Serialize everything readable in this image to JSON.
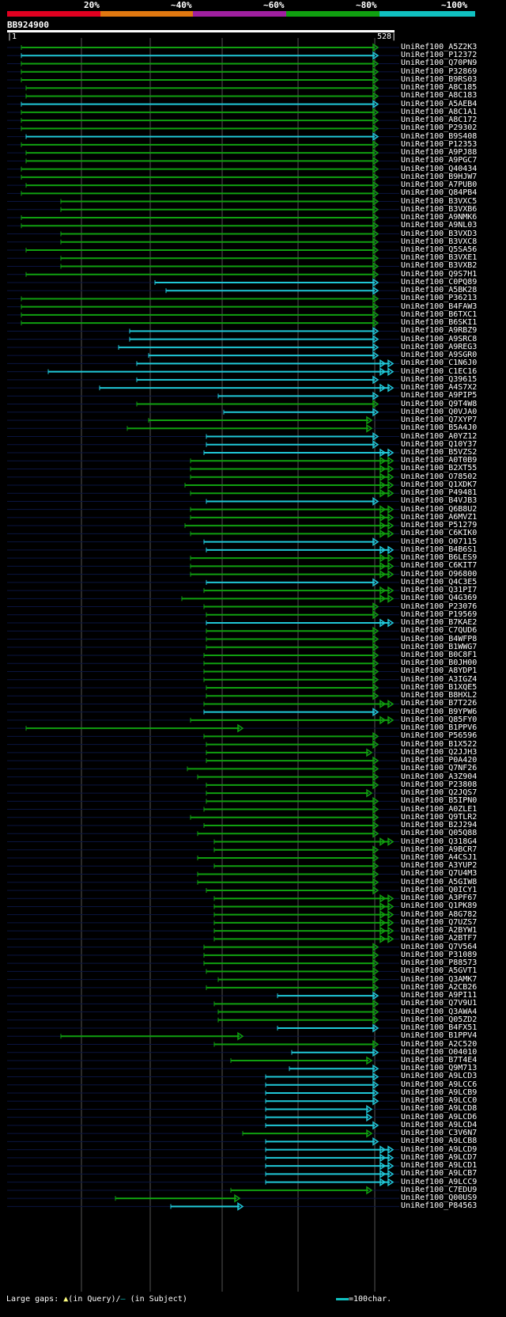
{
  "legend": {
    "percent_labels": [
      "20%",
      "~40%",
      "~60%",
      "~80%",
      "~100%"
    ],
    "colors": [
      "#e00020",
      "#e07810",
      "#a020a0",
      "#10a010",
      "#10c0c0"
    ]
  },
  "query": {
    "id": "BB924900",
    "start": "1",
    "end": "528"
  },
  "footer": {
    "large_gaps_label": "Large gaps:",
    "in_query": "(in Query)/",
    "in_subject": "(in Subject)",
    "scale_label": "=100char."
  },
  "hits": [
    {
      "id": "UniRef100_A5Z2K3",
      "x1": 27,
      "x2": 478,
      "c": "g",
      "e": 1
    },
    {
      "id": "UniRef100_P12372",
      "x1": 27,
      "x2": 478,
      "c": "c",
      "e": 1
    },
    {
      "id": "UniRef100_Q70PN9",
      "x1": 27,
      "x2": 478,
      "c": "g",
      "e": 1
    },
    {
      "id": "UniRef100_P32869",
      "x1": 27,
      "x2": 478,
      "c": "g",
      "e": 1
    },
    {
      "id": "UniRef100_B9RS03",
      "x1": 27,
      "x2": 478,
      "c": "g",
      "e": 1
    },
    {
      "id": "UniRef100_A8C185",
      "x1": 33,
      "x2": 478,
      "c": "g",
      "e": 1
    },
    {
      "id": "UniRef100_A8C183",
      "x1": 33,
      "x2": 478,
      "c": "g",
      "e": 1
    },
    {
      "id": "UniRef100_A5AEB4",
      "x1": 27,
      "x2": 478,
      "c": "c",
      "e": 1
    },
    {
      "id": "UniRef100_A8C1A1",
      "x1": 27,
      "x2": 478,
      "c": "g",
      "e": 1
    },
    {
      "id": "UniRef100_A8C172",
      "x1": 27,
      "x2": 478,
      "c": "g",
      "e": 1
    },
    {
      "id": "UniRef100_P29302",
      "x1": 27,
      "x2": 478,
      "c": "g",
      "e": 1
    },
    {
      "id": "UniRef100_B9S408",
      "x1": 33,
      "x2": 478,
      "c": "c",
      "e": 1
    },
    {
      "id": "UniRef100_P12353",
      "x1": 27,
      "x2": 478,
      "c": "g",
      "e": 1
    },
    {
      "id": "UniRef100_A9PJ88",
      "x1": 33,
      "x2": 478,
      "c": "g",
      "e": 1
    },
    {
      "id": "UniRef100_A9PGC7",
      "x1": 33,
      "x2": 478,
      "c": "g",
      "e": 1
    },
    {
      "id": "UniRef100_Q40434",
      "x1": 27,
      "x2": 478,
      "c": "g",
      "e": 1
    },
    {
      "id": "UniRef100_B9HJW7",
      "x1": 27,
      "x2": 478,
      "c": "g",
      "e": 1
    },
    {
      "id": "UniRef100_A7PUB0",
      "x1": 33,
      "x2": 478,
      "c": "g",
      "e": 1
    },
    {
      "id": "UniRef100_Q84PB4",
      "x1": 27,
      "x2": 478,
      "c": "g",
      "e": 1
    },
    {
      "id": "UniRef100_B3VXC5",
      "x1": 77,
      "x2": 478,
      "c": "g",
      "e": 1
    },
    {
      "id": "UniRef100_B3VXB6",
      "x1": 77,
      "x2": 478,
      "c": "g",
      "e": 1
    },
    {
      "id": "UniRef100_A9NMK6",
      "x1": 27,
      "x2": 478,
      "c": "g",
      "e": 1
    },
    {
      "id": "UniRef100_A9NL03",
      "x1": 27,
      "x2": 478,
      "c": "g",
      "e": 1
    },
    {
      "id": "UniRef100_B3VXD3",
      "x1": 77,
      "x2": 478,
      "c": "g",
      "e": 1
    },
    {
      "id": "UniRef100_B3VXC8",
      "x1": 77,
      "x2": 478,
      "c": "g",
      "e": 1
    },
    {
      "id": "UniRef100_Q5SA56",
      "x1": 33,
      "x2": 478,
      "c": "g",
      "e": 1
    },
    {
      "id": "UniRef100_B3VXE1",
      "x1": 77,
      "x2": 478,
      "c": "g",
      "e": 1
    },
    {
      "id": "UniRef100_B3VXB2",
      "x1": 77,
      "x2": 478,
      "c": "g",
      "e": 1
    },
    {
      "id": "UniRef100_Q9S7H1",
      "x1": 33,
      "x2": 478,
      "c": "g",
      "e": 1
    },
    {
      "id": "UniRef100_C0PQ89",
      "x1": 196,
      "x2": 478,
      "c": "c",
      "e": 1
    },
    {
      "id": "UniRef100_A5BK28",
      "x1": 210,
      "x2": 478,
      "c": "c",
      "e": 1
    },
    {
      "id": "UniRef100_P36213",
      "x1": 27,
      "x2": 478,
      "c": "g",
      "e": 1
    },
    {
      "id": "UniRef100_B4FAW3",
      "x1": 27,
      "x2": 478,
      "c": "g",
      "e": 1
    },
    {
      "id": "UniRef100_B6TXC1",
      "x1": 27,
      "x2": 478,
      "c": "g",
      "e": 1
    },
    {
      "id": "UniRef100_B6SKI1",
      "x1": 27,
      "x2": 478,
      "c": "g",
      "e": 1
    },
    {
      "id": "UniRef100_A9RBZ9",
      "x1": 164,
      "x2": 478,
      "c": "c",
      "e": 1
    },
    {
      "id": "UniRef100_A9SRC8",
      "x1": 164,
      "x2": 478,
      "c": "c",
      "e": 1
    },
    {
      "id": "UniRef100_A9REG3",
      "x1": 150,
      "x2": 478,
      "c": "c",
      "e": 1
    },
    {
      "id": "UniRef100_A9SGR0",
      "x1": 188,
      "x2": 478,
      "c": "c",
      "e": 1
    },
    {
      "id": "UniRef100_C1N6J0",
      "x1": 173,
      "x2": 497,
      "c": "c",
      "e": 2
    },
    {
      "id": "UniRef100_C1EC16",
      "x1": 61,
      "x2": 497,
      "c": "c",
      "e": 2
    },
    {
      "id": "UniRef100_Q39615",
      "x1": 173,
      "x2": 478,
      "c": "c",
      "e": 1
    },
    {
      "id": "UniRef100_A4S7X2",
      "x1": 126,
      "x2": 497,
      "c": "c",
      "e": 2
    },
    {
      "id": "UniRef100_A9PIP5",
      "x1": 276,
      "x2": 478,
      "c": "c",
      "e": 1
    },
    {
      "id": "UniRef100_Q9T4W8",
      "x1": 173,
      "x2": 478,
      "c": "g",
      "e": 1
    },
    {
      "id": "UniRef100_Q0VJA0",
      "x1": 283,
      "x2": 478,
      "c": "c",
      "e": 1
    },
    {
      "id": "UniRef100_Q7XYP7",
      "x1": 188,
      "x2": 470,
      "c": "g",
      "e": 1
    },
    {
      "id": "UniRef100_B5A4J0",
      "x1": 161,
      "x2": 470,
      "c": "g",
      "e": 1
    },
    {
      "id": "UniRef100_A0YZ12",
      "x1": 261,
      "x2": 478,
      "c": "c",
      "e": 1
    },
    {
      "id": "UniRef100_Q10Y37",
      "x1": 261,
      "x2": 478,
      "c": "c",
      "e": 1
    },
    {
      "id": "UniRef100_B5VZS2",
      "x1": 258,
      "x2": 497,
      "c": "c",
      "e": 2
    },
    {
      "id": "UniRef100_A0T0B9",
      "x1": 241,
      "x2": 497,
      "c": "g",
      "e": 2
    },
    {
      "id": "UniRef100_B2XT55",
      "x1": 241,
      "x2": 497,
      "c": "g",
      "e": 2
    },
    {
      "id": "UniRef100_O78502",
      "x1": 241,
      "x2": 497,
      "c": "g",
      "e": 2
    },
    {
      "id": "UniRef100_Q1XDK7",
      "x1": 234,
      "x2": 497,
      "c": "g",
      "e": 2
    },
    {
      "id": "UniRef100_P49481",
      "x1": 241,
      "x2": 497,
      "c": "g",
      "e": 2
    },
    {
      "id": "UniRef100_B4VJB3",
      "x1": 261,
      "x2": 478,
      "c": "c",
      "e": 1
    },
    {
      "id": "UniRef100_Q6B8U2",
      "x1": 241,
      "x2": 497,
      "c": "g",
      "e": 2
    },
    {
      "id": "UniRef100_A6MVZ1",
      "x1": 241,
      "x2": 497,
      "c": "g",
      "e": 2
    },
    {
      "id": "UniRef100_P51279",
      "x1": 234,
      "x2": 497,
      "c": "g",
      "e": 2
    },
    {
      "id": "UniRef100_C6KIK0",
      "x1": 241,
      "x2": 497,
      "c": "g",
      "e": 2
    },
    {
      "id": "UniRef100_O07115",
      "x1": 258,
      "x2": 478,
      "c": "c",
      "e": 1
    },
    {
      "id": "UniRef100_B4B6S1",
      "x1": 261,
      "x2": 497,
      "c": "c",
      "e": 2
    },
    {
      "id": "UniRef100_B6LES9",
      "x1": 241,
      "x2": 497,
      "c": "g",
      "e": 2
    },
    {
      "id": "UniRef100_C6KIT7",
      "x1": 241,
      "x2": 497,
      "c": "g",
      "e": 2
    },
    {
      "id": "UniRef100_O96800",
      "x1": 241,
      "x2": 497,
      "c": "g",
      "e": 2
    },
    {
      "id": "UniRef100_Q4C3E5",
      "x1": 261,
      "x2": 478,
      "c": "c",
      "e": 1
    },
    {
      "id": "UniRef100_Q31PI7",
      "x1": 258,
      "x2": 497,
      "c": "g",
      "e": 2
    },
    {
      "id": "UniRef100_Q4G369",
      "x1": 230,
      "x2": 497,
      "c": "g",
      "e": 2
    },
    {
      "id": "UniRef100_P23076",
      "x1": 258,
      "x2": 478,
      "c": "g",
      "e": 1
    },
    {
      "id": "UniRef100_P19569",
      "x1": 261,
      "x2": 478,
      "c": "g",
      "e": 1
    },
    {
      "id": "UniRef100_B7KAE2",
      "x1": 261,
      "x2": 497,
      "c": "c",
      "e": 2
    },
    {
      "id": "UniRef100_C7QUD6",
      "x1": 261,
      "x2": 478,
      "c": "g",
      "e": 1
    },
    {
      "id": "UniRef100_B4WFP8",
      "x1": 261,
      "x2": 478,
      "c": "g",
      "e": 1
    },
    {
      "id": "UniRef100_B1WWG7",
      "x1": 261,
      "x2": 478,
      "c": "g",
      "e": 1
    },
    {
      "id": "UniRef100_B0C8F1",
      "x1": 258,
      "x2": 478,
      "c": "g",
      "e": 1
    },
    {
      "id": "UniRef100_B0JH00",
      "x1": 258,
      "x2": 478,
      "c": "g",
      "e": 1
    },
    {
      "id": "UniRef100_A8YDP1",
      "x1": 258,
      "x2": 478,
      "c": "g",
      "e": 1
    },
    {
      "id": "UniRef100_A3IGZ4",
      "x1": 258,
      "x2": 478,
      "c": "g",
      "e": 1
    },
    {
      "id": "UniRef100_B1XQE5",
      "x1": 261,
      "x2": 478,
      "c": "g",
      "e": 1
    },
    {
      "id": "UniRef100_B8HXL2",
      "x1": 261,
      "x2": 478,
      "c": "g",
      "e": 1
    },
    {
      "id": "UniRef100_B7T226",
      "x1": 258,
      "x2": 497,
      "c": "g",
      "e": 2
    },
    {
      "id": "UniRef100_B9YPW6",
      "x1": 258,
      "x2": 478,
      "c": "c",
      "e": 1
    },
    {
      "id": "UniRef100_Q85FY0",
      "x1": 241,
      "x2": 497,
      "c": "g",
      "e": 2
    },
    {
      "id": "UniRef100_B1PPV6",
      "x1": 33,
      "x2": 307,
      "c": "g",
      "e": 1
    },
    {
      "id": "UniRef100_P56596",
      "x1": 258,
      "x2": 478,
      "c": "g",
      "e": 1
    },
    {
      "id": "UniRef100_B1X522",
      "x1": 261,
      "x2": 478,
      "c": "g",
      "e": 1
    },
    {
      "id": "UniRef100_Q2JJH3",
      "x1": 261,
      "x2": 470,
      "c": "g",
      "e": 1
    },
    {
      "id": "UniRef100_P0A420",
      "x1": 261,
      "x2": 478,
      "c": "g",
      "e": 1
    },
    {
      "id": "UniRef100_Q7NF26",
      "x1": 237,
      "x2": 478,
      "c": "g",
      "e": 1
    },
    {
      "id": "UniRef100_A3Z904",
      "x1": 250,
      "x2": 478,
      "c": "g",
      "e": 1
    },
    {
      "id": "UniRef100_P23808",
      "x1": 261,
      "x2": 478,
      "c": "g",
      "e": 1
    },
    {
      "id": "UniRef100_Q2JQS7",
      "x1": 261,
      "x2": 470,
      "c": "g",
      "e": 1
    },
    {
      "id": "UniRef100_B5IPN0",
      "x1": 261,
      "x2": 478,
      "c": "g",
      "e": 1
    },
    {
      "id": "UniRef100_A0ZLE1",
      "x1": 258,
      "x2": 478,
      "c": "g",
      "e": 1
    },
    {
      "id": "UniRef100_Q9TLR2",
      "x1": 241,
      "x2": 478,
      "c": "g",
      "e": 1
    },
    {
      "id": "UniRef100_B2J294",
      "x1": 258,
      "x2": 478,
      "c": "g",
      "e": 1
    },
    {
      "id": "UniRef100_Q05Q88",
      "x1": 250,
      "x2": 478,
      "c": "g",
      "e": 1
    },
    {
      "id": "UniRef100_Q318G4",
      "x1": 271,
      "x2": 497,
      "c": "g",
      "e": 2
    },
    {
      "id": "UniRef100_A9BCR7",
      "x1": 271,
      "x2": 478,
      "c": "g",
      "e": 1
    },
    {
      "id": "UniRef100_A4CSJ1",
      "x1": 250,
      "x2": 478,
      "c": "g",
      "e": 1
    },
    {
      "id": "UniRef100_A3YUP2",
      "x1": 271,
      "x2": 478,
      "c": "g",
      "e": 1
    },
    {
      "id": "UniRef100_Q7U4M3",
      "x1": 250,
      "x2": 478,
      "c": "g",
      "e": 1
    },
    {
      "id": "UniRef100_A5GIW8",
      "x1": 250,
      "x2": 478,
      "c": "g",
      "e": 1
    },
    {
      "id": "UniRef100_Q0ICY1",
      "x1": 261,
      "x2": 478,
      "c": "g",
      "e": 1
    },
    {
      "id": "UniRef100_A3PF67",
      "x1": 271,
      "x2": 497,
      "c": "g",
      "e": 2
    },
    {
      "id": "UniRef100_Q1PK89",
      "x1": 271,
      "x2": 497,
      "c": "g",
      "e": 2
    },
    {
      "id": "UniRef100_A8G782",
      "x1": 271,
      "x2": 497,
      "c": "g",
      "e": 2
    },
    {
      "id": "UniRef100_Q7UZS7",
      "x1": 271,
      "x2": 497,
      "c": "g",
      "e": 2
    },
    {
      "id": "UniRef100_A2BYW1",
      "x1": 271,
      "x2": 497,
      "c": "g",
      "e": 2
    },
    {
      "id": "UniRef100_A2BTF7",
      "x1": 271,
      "x2": 497,
      "c": "g",
      "e": 2
    },
    {
      "id": "UniRef100_Q7V564",
      "x1": 258,
      "x2": 478,
      "c": "g",
      "e": 1
    },
    {
      "id": "UniRef100_P31089",
      "x1": 258,
      "x2": 478,
      "c": "g",
      "e": 1
    },
    {
      "id": "UniRef100_P88573",
      "x1": 258,
      "x2": 478,
      "c": "g",
      "e": 1
    },
    {
      "id": "UniRef100_A5GVT1",
      "x1": 261,
      "x2": 478,
      "c": "g",
      "e": 1
    },
    {
      "id": "UniRef100_Q3AMK7",
      "x1": 276,
      "x2": 478,
      "c": "g",
      "e": 1
    },
    {
      "id": "UniRef100_A2CB26",
      "x1": 261,
      "x2": 478,
      "c": "g",
      "e": 1
    },
    {
      "id": "UniRef100_A9PI11",
      "x1": 351,
      "x2": 478,
      "c": "c",
      "e": 1
    },
    {
      "id": "UniRef100_Q7V9U1",
      "x1": 271,
      "x2": 478,
      "c": "g",
      "e": 1
    },
    {
      "id": "UniRef100_Q3AWA4",
      "x1": 276,
      "x2": 478,
      "c": "g",
      "e": 1
    },
    {
      "id": "UniRef100_Q05ZD2",
      "x1": 276,
      "x2": 478,
      "c": "g",
      "e": 1
    },
    {
      "id": "UniRef100_B4FX51",
      "x1": 351,
      "x2": 478,
      "c": "c",
      "e": 1
    },
    {
      "id": "UniRef100_B1PPV4",
      "x1": 77,
      "x2": 307,
      "c": "g",
      "e": 1
    },
    {
      "id": "UniRef100_A2C520",
      "x1": 271,
      "x2": 478,
      "c": "g",
      "e": 1
    },
    {
      "id": "UniRef100_O04010",
      "x1": 369,
      "x2": 478,
      "c": "c",
      "e": 1
    },
    {
      "id": "UniRef100_B7T4E4",
      "x1": 292,
      "x2": 470,
      "c": "g",
      "e": 1
    },
    {
      "id": "UniRef100_Q9M713",
      "x1": 366,
      "x2": 478,
      "c": "c",
      "e": 1
    },
    {
      "id": "UniRef100_A9LCD3",
      "x1": 336,
      "x2": 478,
      "c": "c",
      "e": 1
    },
    {
      "id": "UniRef100_A9LCC6",
      "x1": 336,
      "x2": 478,
      "c": "c",
      "e": 1
    },
    {
      "id": "UniRef100_A9LCB9",
      "x1": 336,
      "x2": 478,
      "c": "c",
      "e": 1
    },
    {
      "id": "UniRef100_A9LCC0",
      "x1": 336,
      "x2": 478,
      "c": "c",
      "e": 1
    },
    {
      "id": "UniRef100_A9LCD8",
      "x1": 336,
      "x2": 470,
      "c": "c",
      "e": 1
    },
    {
      "id": "UniRef100_A9LCD6",
      "x1": 336,
      "x2": 470,
      "c": "c",
      "e": 1
    },
    {
      "id": "UniRef100_A9LCD4",
      "x1": 336,
      "x2": 478,
      "c": "c",
      "e": 1
    },
    {
      "id": "UniRef100_C3V6N7",
      "x1": 307,
      "x2": 470,
      "c": "g",
      "e": 1
    },
    {
      "id": "UniRef100_A9LCB8",
      "x1": 336,
      "x2": 478,
      "c": "c",
      "e": 1
    },
    {
      "id": "UniRef100_A9LCD9",
      "x1": 336,
      "x2": 497,
      "c": "c",
      "e": 2
    },
    {
      "id": "UniRef100_A9LCD7",
      "x1": 336,
      "x2": 497,
      "c": "c",
      "e": 2
    },
    {
      "id": "UniRef100_A9LCD1",
      "x1": 336,
      "x2": 497,
      "c": "c",
      "e": 2
    },
    {
      "id": "UniRef100_A9LCB7",
      "x1": 336,
      "x2": 497,
      "c": "c",
      "e": 2
    },
    {
      "id": "UniRef100_A9LCC9",
      "x1": 336,
      "x2": 497,
      "c": "c",
      "e": 2
    },
    {
      "id": "UniRef100_C7EDU9",
      "x1": 292,
      "x2": 470,
      "c": "g",
      "e": 1
    },
    {
      "id": "UniRef100_Q00US9",
      "x1": 146,
      "x2": 303,
      "c": "g",
      "e": 1
    },
    {
      "id": "UniRef100_P84563",
      "x1": 216,
      "x2": 307,
      "c": "c",
      "e": 1
    }
  ]
}
